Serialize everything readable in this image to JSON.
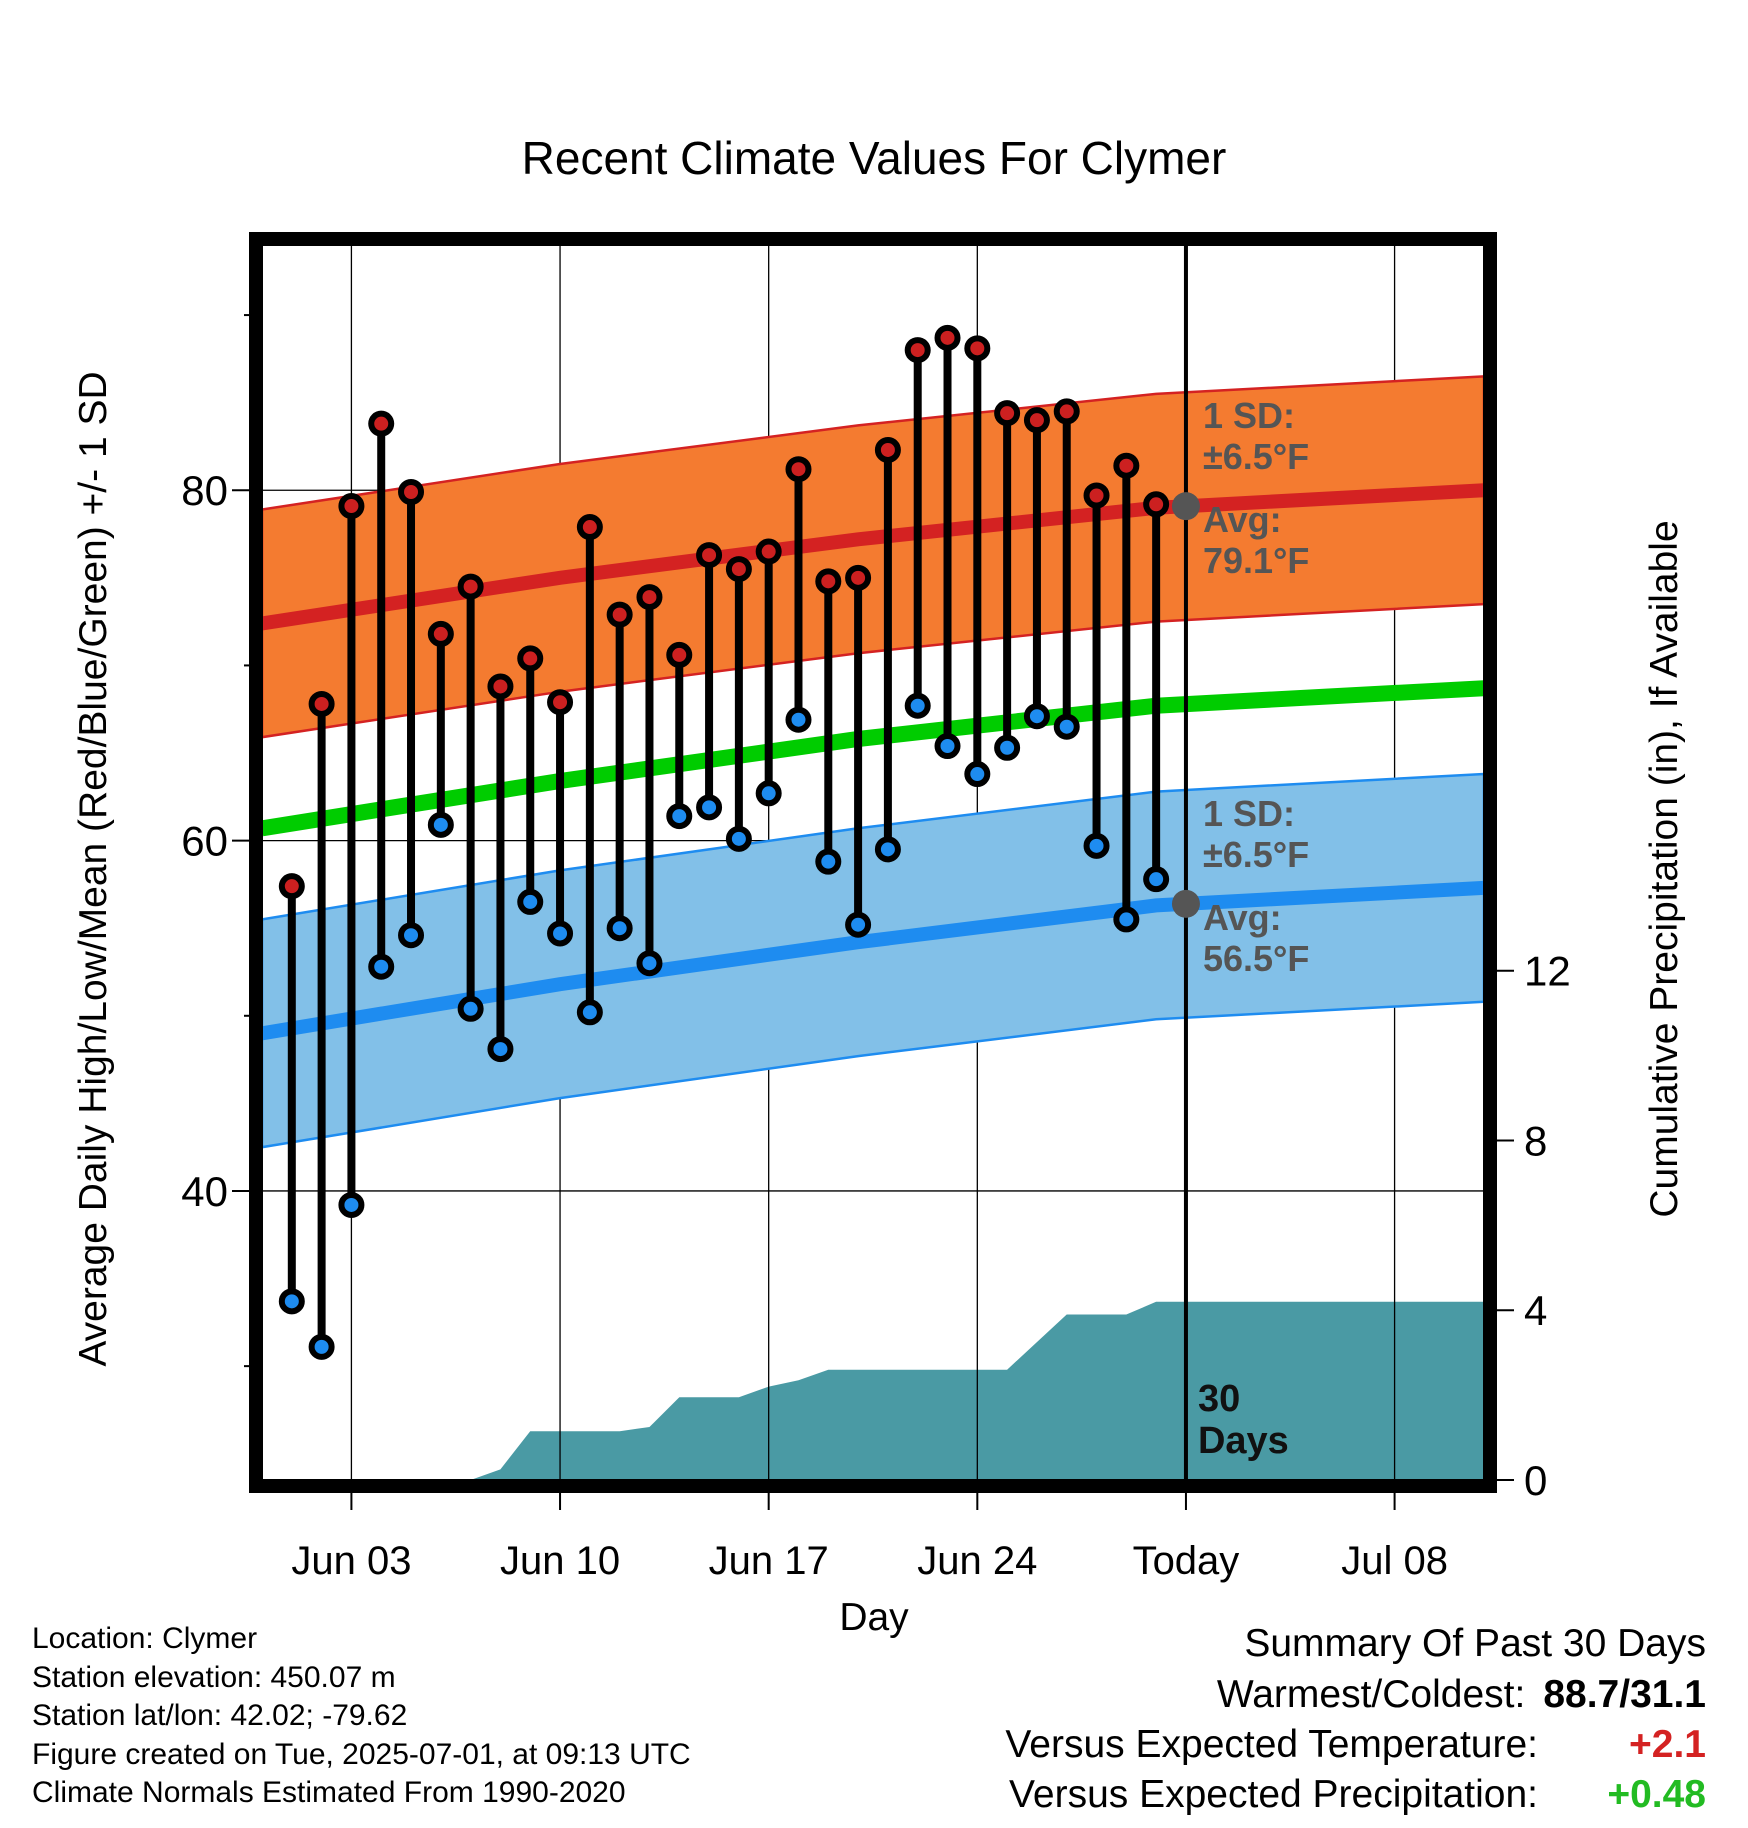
{
  "chart_data": {
    "type": "line",
    "title": "Recent Climate Values For Clymer",
    "xlabel": "Day",
    "ylabel": "Average Daily High/Low/Mean (Red/Blue/Green) +/- 1 SD",
    "y2label": "Cumulative Precipitation (in), If Available",
    "xlim": [
      "2025-05-31",
      "2025-07-11"
    ],
    "ylim": [
      23.5,
      94
    ],
    "y2lim": [
      0,
      29.1
    ],
    "x_ticks": [
      {
        "date": "2025-06-03",
        "label": "Jun 03"
      },
      {
        "date": "2025-06-10",
        "label": "Jun 10"
      },
      {
        "date": "2025-06-17",
        "label": "Jun 17"
      },
      {
        "date": "2025-06-24",
        "label": "Jun 24"
      },
      {
        "date": "2025-07-01",
        "label": "Today"
      },
      {
        "date": "2025-07-08",
        "label": "Jul 08"
      }
    ],
    "y_ticks": [
      40,
      60,
      80
    ],
    "y_minor_ticks": [
      30,
      50,
      70,
      90
    ],
    "y2_ticks": [
      0,
      4,
      8,
      12
    ],
    "grid": true,
    "today": "2025-07-01",
    "today_label": "30 Days",
    "normal_high": {
      "x": [
        "2025-05-31",
        "2025-06-10",
        "2025-06-20",
        "2025-06-30",
        "2025-07-11"
      ],
      "mean": [
        72.4,
        75.0,
        77.2,
        79.0,
        80.0
      ],
      "sd_label": "1 SD:",
      "sd_value": "±6.5°F",
      "avg_label": "Avg:",
      "avg_value": "79.1°F"
    },
    "normal_low": {
      "x": [
        "2025-05-31",
        "2025-06-10",
        "2025-06-20",
        "2025-06-30",
        "2025-07-11"
      ],
      "mean": [
        49.0,
        51.8,
        54.2,
        56.3,
        57.3
      ],
      "sd_label": "1 SD:",
      "sd_value": "±6.5°F",
      "avg_label": "Avg:",
      "avg_value": "56.5°F"
    },
    "normal_mean": {
      "x": [
        "2025-05-31",
        "2025-06-10",
        "2025-06-20",
        "2025-06-30",
        "2025-07-11"
      ],
      "values": [
        60.7,
        63.4,
        65.8,
        67.7,
        68.7
      ]
    },
    "daily": [
      {
        "date": "2025-06-01",
        "high": 57.4,
        "low": 33.7
      },
      {
        "date": "2025-06-02",
        "high": 67.8,
        "low": 31.1
      },
      {
        "date": "2025-06-03",
        "high": 79.1,
        "low": 39.2
      },
      {
        "date": "2025-06-04",
        "high": 83.8,
        "low": 52.8
      },
      {
        "date": "2025-06-05",
        "high": 79.9,
        "low": 54.6
      },
      {
        "date": "2025-06-06",
        "high": 71.8,
        "low": 60.9
      },
      {
        "date": "2025-06-07",
        "high": 74.5,
        "low": 50.4
      },
      {
        "date": "2025-06-08",
        "high": 68.8,
        "low": 48.1
      },
      {
        "date": "2025-06-09",
        "high": 70.4,
        "low": 56.5
      },
      {
        "date": "2025-06-10",
        "high": 67.9,
        "low": 54.7
      },
      {
        "date": "2025-06-11",
        "high": 77.9,
        "low": 50.2
      },
      {
        "date": "2025-06-12",
        "high": 72.9,
        "low": 55.0
      },
      {
        "date": "2025-06-13",
        "high": 73.9,
        "low": 53.0
      },
      {
        "date": "2025-06-14",
        "high": 70.6,
        "low": 61.4
      },
      {
        "date": "2025-06-15",
        "high": 76.3,
        "low": 61.9
      },
      {
        "date": "2025-06-16",
        "high": 75.5,
        "low": 60.1
      },
      {
        "date": "2025-06-17",
        "high": 76.5,
        "low": 62.7
      },
      {
        "date": "2025-06-18",
        "high": 81.2,
        "low": 66.9
      },
      {
        "date": "2025-06-19",
        "high": 74.8,
        "low": 58.8
      },
      {
        "date": "2025-06-20",
        "high": 75.0,
        "low": 55.2
      },
      {
        "date": "2025-06-21",
        "high": 82.3,
        "low": 59.5
      },
      {
        "date": "2025-06-22",
        "high": 88.0,
        "low": 67.7
      },
      {
        "date": "2025-06-23",
        "high": 88.7,
        "low": 65.4
      },
      {
        "date": "2025-06-24",
        "high": 88.1,
        "low": 63.8
      },
      {
        "date": "2025-06-25",
        "high": 84.4,
        "low": 65.3
      },
      {
        "date": "2025-06-26",
        "high": 84.0,
        "low": 67.1
      },
      {
        "date": "2025-06-27",
        "high": 84.5,
        "low": 66.5
      },
      {
        "date": "2025-06-28",
        "high": 79.7,
        "low": 59.7
      },
      {
        "date": "2025-06-29",
        "high": 81.4,
        "low": 55.5
      },
      {
        "date": "2025-06-30",
        "high": 79.2,
        "low": 57.8
      }
    ],
    "cumulative_precip": {
      "x": [
        "2025-05-31",
        "2025-06-05",
        "2025-06-07",
        "2025-06-08",
        "2025-06-09",
        "2025-06-12",
        "2025-06-13",
        "2025-06-14",
        "2025-06-16",
        "2025-06-17",
        "2025-06-18",
        "2025-06-19",
        "2025-06-25",
        "2025-06-27",
        "2025-06-29",
        "2025-06-30",
        "2025-07-01",
        "2025-07-11"
      ],
      "values": [
        0,
        0,
        0,
        0.25,
        1.15,
        1.15,
        1.25,
        1.95,
        1.95,
        2.2,
        2.35,
        2.6,
        2.6,
        3.9,
        3.9,
        4.2,
        4.2,
        4.2
      ]
    }
  },
  "info": {
    "location": "Location: Clymer",
    "elevation": "Station elevation: 450.07 m",
    "latlon": "Station lat/lon: 42.02; -79.62",
    "created": "Figure created on Tue, 2025-07-01, at 09:13 UTC",
    "normals": "Climate Normals Estimated From 1990-2020"
  },
  "summary": {
    "title": "Summary Of Past 30 Days",
    "warmest_coldest_label": "Warmest/Coldest:",
    "warmest_coldest_value": "88.7/31.1",
    "temp_label": "Versus Expected Temperature:",
    "temp_value": "+2.1",
    "precip_label": "Versus Expected Precipitation:",
    "precip_value": "+0.48"
  },
  "colors": {
    "high_band": "#f47b30",
    "high_line": "#d42222",
    "low_band": "#82c0e8",
    "low_line": "#1e8cf0",
    "mean_line": "#00cc00",
    "precip": "#4a9aa4",
    "high_dot": "#cc2020",
    "low_dot": "#1e8cf0",
    "avg_text": "#555555",
    "temp_delta": "#d42222",
    "precip_delta": "#22bb22"
  }
}
